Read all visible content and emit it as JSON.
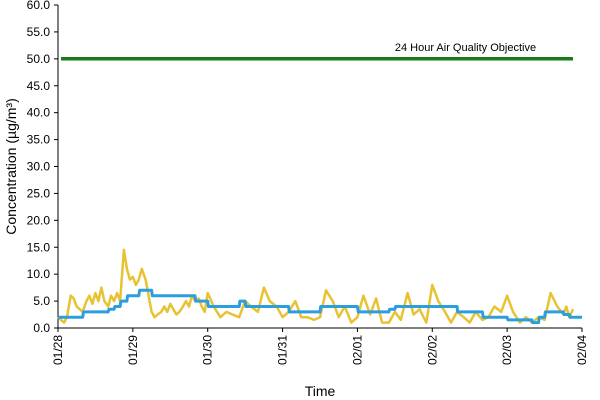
{
  "chart_data": {
    "type": "line",
    "title": "",
    "xlabel": "Time",
    "ylabel": "Concentration (µg/m³)",
    "ylim": [
      0,
      60
    ],
    "yticks": [
      "0.0",
      "5.0",
      "10.0",
      "15.0",
      "20.0",
      "25.0",
      "30.0",
      "35.0",
      "40.0",
      "45.0",
      "50.0",
      "55.0",
      "60.0"
    ],
    "xlim": [
      0,
      7
    ],
    "xtick_labels": [
      "01/28",
      "01/29",
      "01/30",
      "01/31",
      "02/01",
      "02/02",
      "02/03",
      "02/04"
    ],
    "grid": false,
    "annotations": [
      {
        "text": "24 Hour Air Quality Objective",
        "x": 4.5,
        "y": 51.5
      }
    ],
    "colors": {
      "objective": "#1a7a1a",
      "yellow": "#e8c233",
      "blue": "#2b9ee0"
    },
    "series": [
      {
        "color": "#e8c233",
        "x": [
          0.0,
          0.04,
          0.08,
          0.12,
          0.17,
          0.21,
          0.25,
          0.29,
          0.33,
          0.38,
          0.42,
          0.46,
          0.5,
          0.54,
          0.58,
          0.62,
          0.67,
          0.71,
          0.75,
          0.79,
          0.83,
          0.88,
          0.92,
          0.96,
          1.0,
          1.04,
          1.08,
          1.12,
          1.17,
          1.21,
          1.25,
          1.29,
          1.33,
          1.38,
          1.42,
          1.46,
          1.5,
          1.54,
          1.58,
          1.62,
          1.67,
          1.71,
          1.75,
          1.79,
          1.83,
          1.88,
          1.92,
          1.96,
          2.0,
          2.08,
          2.17,
          2.25,
          2.33,
          2.42,
          2.5,
          2.58,
          2.67,
          2.75,
          2.83,
          2.92,
          3.0,
          3.08,
          3.17,
          3.25,
          3.33,
          3.42,
          3.5,
          3.58,
          3.67,
          3.75,
          3.83,
          3.92,
          4.0,
          4.08,
          4.17,
          4.25,
          4.33,
          4.42,
          4.5,
          4.58,
          4.67,
          4.75,
          4.83,
          4.92,
          5.0,
          5.08,
          5.17,
          5.25,
          5.33,
          5.42,
          5.5,
          5.58,
          5.67,
          5.75,
          5.83,
          5.92,
          6.0,
          6.08,
          6.17,
          6.25,
          6.33,
          6.42,
          6.5,
          6.58,
          6.67,
          6.75,
          6.79,
          6.83,
          6.88
        ],
        "y": [
          2.0,
          1.5,
          1.0,
          2.0,
          6.0,
          5.5,
          4.0,
          3.5,
          3.0,
          5.0,
          6.0,
          4.5,
          6.5,
          5.0,
          7.5,
          5.0,
          4.0,
          6.0,
          5.0,
          6.5,
          5.0,
          14.5,
          11.0,
          9.0,
          9.5,
          8.0,
          9.0,
          11.0,
          9.0,
          6.0,
          3.0,
          2.0,
          2.5,
          3.0,
          4.0,
          3.0,
          4.5,
          3.5,
          2.5,
          3.0,
          4.0,
          5.0,
          4.0,
          6.0,
          5.0,
          5.5,
          4.0,
          3.0,
          6.5,
          4.0,
          2.0,
          3.0,
          2.5,
          2.0,
          5.0,
          4.0,
          3.0,
          7.5,
          5.0,
          4.0,
          2.0,
          3.0,
          5.0,
          2.0,
          2.0,
          1.5,
          2.0,
          7.0,
          5.0,
          2.0,
          4.0,
          1.0,
          2.0,
          6.0,
          2.5,
          5.5,
          1.0,
          1.0,
          3.0,
          1.5,
          6.5,
          2.5,
          3.5,
          1.0,
          8.0,
          5.0,
          3.0,
          1.0,
          3.0,
          2.0,
          1.0,
          3.0,
          1.5,
          2.0,
          4.0,
          3.0,
          6.0,
          3.0,
          1.0,
          2.0,
          1.0,
          2.0,
          1.5,
          6.5,
          4.0,
          2.5,
          4.0,
          2.0,
          3.5
        ]
      },
      {
        "color": "#2b9ee0",
        "x": [
          0.0,
          0.33,
          0.34,
          0.67,
          0.68,
          0.75,
          0.76,
          0.83,
          0.84,
          0.92,
          0.93,
          1.08,
          1.09,
          1.25,
          1.26,
          1.83,
          1.84,
          2.0,
          2.01,
          2.42,
          2.43,
          2.5,
          2.51,
          3.08,
          3.09,
          3.5,
          3.51,
          4.0,
          4.01,
          4.42,
          4.43,
          4.5,
          4.51,
          5.33,
          5.34,
          5.67,
          5.68,
          6.0,
          6.01,
          6.33,
          6.34,
          6.42,
          6.43,
          6.5,
          6.51,
          6.75,
          6.76,
          6.83,
          6.84,
          7.0
        ],
        "y": [
          2.0,
          2.0,
          3.0,
          3.0,
          3.5,
          3.5,
          4.0,
          4.0,
          5.0,
          5.0,
          6.0,
          6.0,
          7.0,
          7.0,
          6.0,
          6.0,
          5.0,
          5.0,
          4.0,
          4.0,
          5.0,
          5.0,
          4.0,
          4.0,
          3.0,
          3.0,
          4.0,
          4.0,
          3.0,
          3.0,
          3.5,
          3.5,
          4.0,
          4.0,
          3.0,
          3.0,
          2.0,
          2.0,
          1.5,
          1.5,
          1.0,
          1.0,
          2.0,
          2.0,
          3.0,
          3.0,
          2.5,
          2.5,
          2.0,
          2.0
        ]
      },
      {
        "color": "#1a7a1a",
        "x": [
          0.04,
          6.88
        ],
        "y": [
          50.0,
          50.0
        ]
      }
    ]
  }
}
